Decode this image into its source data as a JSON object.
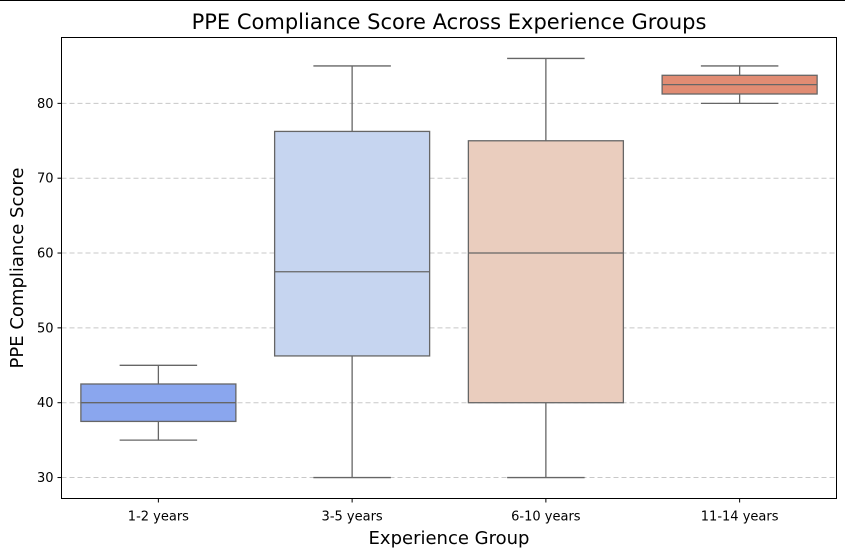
{
  "chart_data": {
    "type": "box",
    "title": "PPE Compliance Score Across Experience Groups",
    "xlabel": "Experience Group",
    "ylabel": "PPE Compliance Score",
    "ylim": [
      27.2,
      88.8
    ],
    "yticks": [
      30,
      40,
      50,
      60,
      70,
      80
    ],
    "grid": "horizontal dashed",
    "categories": [
      "1-2 years",
      "3-5 years",
      "6-10 years",
      "11-14 years"
    ],
    "boxes": [
      {
        "category": "1-2 years",
        "min": 35,
        "q1": 37.5,
        "median": 40,
        "q3": 42.5,
        "max": 45,
        "color": "#8aa6ee"
      },
      {
        "category": "3-5 years",
        "min": 30,
        "q1": 46.25,
        "median": 57.5,
        "q3": 76.25,
        "max": 85,
        "color": "#c6d5f0"
      },
      {
        "category": "6-10 years",
        "min": 30,
        "q1": 40,
        "median": 60,
        "q3": 75,
        "max": 86,
        "color": "#eacdbe"
      },
      {
        "category": "11-14 years",
        "min": 80,
        "q1": 81.25,
        "median": 82.5,
        "q3": 83.75,
        "max": 85,
        "color": "#e18c73"
      }
    ]
  }
}
